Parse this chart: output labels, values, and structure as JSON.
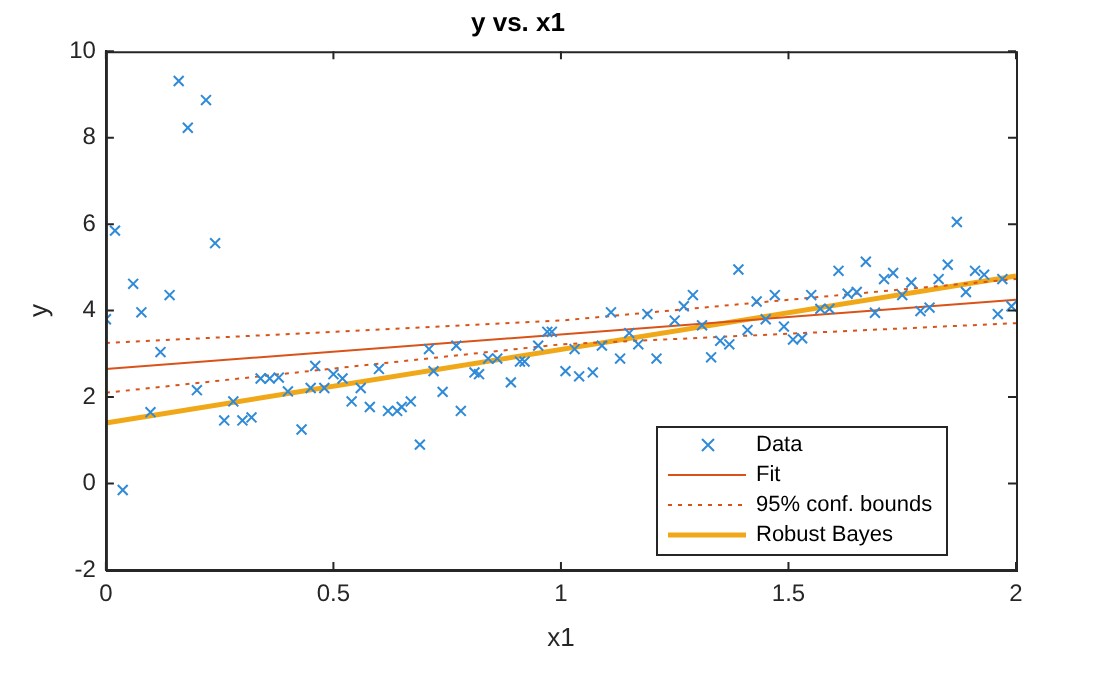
{
  "chart_data": {
    "type": "scatter",
    "title": "y vs. x1",
    "xlabel": "x1",
    "ylabel": "y",
    "xlim": [
      0,
      2
    ],
    "xticks": [
      0,
      0.5,
      1,
      1.5,
      2
    ],
    "ylim": [
      -2,
      10
    ],
    "yticks": [
      -2,
      0,
      2,
      4,
      6,
      8,
      10
    ],
    "grid": false,
    "legend": "bottom right",
    "series": [
      {
        "name": "Data",
        "marker": "cross",
        "color": "#2f8ad8",
        "x": [
          0.0,
          0.02,
          0.037,
          0.06,
          0.078,
          0.098,
          0.12,
          0.14,
          0.16,
          0.18,
          0.2,
          0.22,
          0.24,
          0.26,
          0.28,
          0.3,
          0.32,
          0.34,
          0.36,
          0.38,
          0.4,
          0.43,
          0.45,
          0.46,
          0.48,
          0.5,
          0.52,
          0.54,
          0.56,
          0.58,
          0.6,
          0.62,
          0.64,
          0.65,
          0.67,
          0.69,
          0.71,
          0.72,
          0.74,
          0.77,
          0.78,
          0.81,
          0.82,
          0.84,
          0.86,
          0.89,
          0.91,
          0.92,
          0.95,
          0.97,
          0.98,
          1.01,
          1.03,
          1.04,
          1.07,
          1.09,
          1.11,
          1.13,
          1.15,
          1.17,
          1.19,
          1.21,
          1.25,
          1.27,
          1.29,
          1.31,
          1.33,
          1.35,
          1.37,
          1.39,
          1.41,
          1.43,
          1.45,
          1.47,
          1.49,
          1.51,
          1.53,
          1.55,
          1.57,
          1.59,
          1.61,
          1.63,
          1.65,
          1.67,
          1.69,
          1.71,
          1.73,
          1.75,
          1.77,
          1.79,
          1.81,
          1.83,
          1.85,
          1.87,
          1.89,
          1.91,
          1.93,
          1.96,
          1.97,
          1.99
        ],
        "values": [
          3.8,
          5.85,
          -0.15,
          4.62,
          3.96,
          1.65,
          3.04,
          4.36,
          9.31,
          8.23,
          2.16,
          8.87,
          5.56,
          1.46,
          1.9,
          1.46,
          1.53,
          2.43,
          2.43,
          2.45,
          2.13,
          1.25,
          2.21,
          2.72,
          2.21,
          2.53,
          2.43,
          1.9,
          2.21,
          1.77,
          2.65,
          1.68,
          1.68,
          1.77,
          1.9,
          0.9,
          3.11,
          2.6,
          2.12,
          3.19,
          1.68,
          2.57,
          2.53,
          2.89,
          2.89,
          2.34,
          2.82,
          2.82,
          3.19,
          3.51,
          3.51,
          2.6,
          3.11,
          2.48,
          2.57,
          3.19,
          3.96,
          2.89,
          3.48,
          3.22,
          3.92,
          2.89,
          3.77,
          4.1,
          4.36,
          3.66,
          2.92,
          3.3,
          3.22,
          4.95,
          3.55,
          4.21,
          3.8,
          4.36,
          3.63,
          3.33,
          3.36,
          4.36,
          4.04,
          4.04,
          4.92,
          4.39,
          4.43,
          5.13,
          3.95,
          4.73,
          4.87,
          4.36,
          4.65,
          3.99,
          4.07,
          4.73,
          5.06,
          6.05,
          4.43,
          4.92,
          4.83,
          3.92,
          4.73,
          4.1
        ]
      },
      {
        "name": "Fit",
        "type": "line",
        "line_style": "solid",
        "color": "#d95319",
        "x": [
          0,
          2
        ],
        "values": [
          2.65,
          4.25
        ]
      },
      {
        "name": "95% conf. bounds",
        "type": "line",
        "line_style": "dotted",
        "color": "#d95319",
        "x": [
          0,
          1,
          2
        ],
        "values": [
          3.25,
          3.77,
          4.73
        ]
      },
      {
        "type": "line",
        "line_style": "dotted",
        "color": "#d95319",
        "x": [
          0,
          1,
          2
        ],
        "values": [
          2.1,
          3.22,
          3.71
        ]
      },
      {
        "name": "Robust Bayes",
        "type": "line",
        "line_style": "solid",
        "color": "#f0a818",
        "x": [
          0,
          2
        ],
        "values": [
          1.4,
          4.8
        ]
      }
    ]
  }
}
